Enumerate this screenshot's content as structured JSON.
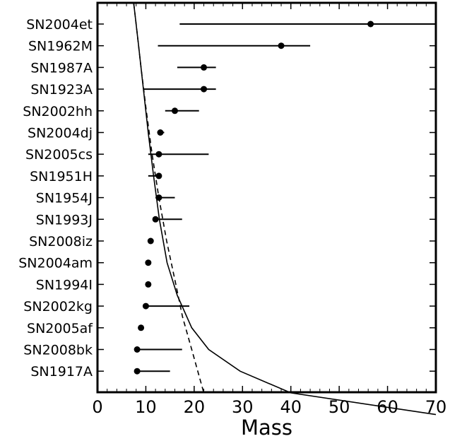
{
  "chart_data": {
    "type": "scatter",
    "title": "",
    "xlabel": "Mass",
    "ylabel": "",
    "xlim": [
      0,
      70
    ],
    "xticks": [
      "0",
      "10",
      "20",
      "30",
      "40",
      "50",
      "60",
      "70"
    ],
    "grid": false,
    "legend": "none",
    "categories": [
      "SN2004et",
      "SN1962M",
      "SN1987A",
      "SN1923A",
      "SN2002hh",
      "SN2004dj",
      "SN2005cs",
      "SN1951H",
      "SN1954J",
      "SN1993J",
      "SN2008iz",
      "SN2004am",
      "SN1994I",
      "SN2002kg",
      "SN2005af",
      "SN2008bk",
      "SN1917A"
    ],
    "points": [
      {
        "label": "SN2004et",
        "mass": 56.5,
        "lo": 17.0,
        "hi": 70.0
      },
      {
        "label": "SN1962M",
        "mass": 38.0,
        "lo": 12.5,
        "hi": 44.0
      },
      {
        "label": "SN1987A",
        "mass": 22.0,
        "lo": 16.5,
        "hi": 24.5
      },
      {
        "label": "SN1923A",
        "mass": 22.0,
        "lo": 9.5,
        "hi": 24.5
      },
      {
        "label": "SN2002hh",
        "mass": 16.0,
        "lo": 14.0,
        "hi": 21.0
      },
      {
        "label": "SN2004dj",
        "mass": 13.0,
        "lo": 12.5,
        "hi": 13.8
      },
      {
        "label": "SN2005cs",
        "mass": 12.7,
        "lo": 10.5,
        "hi": 23.0
      },
      {
        "label": "SN1951H",
        "mass": 12.7,
        "lo": 10.5,
        "hi": 13.0
      },
      {
        "label": "SN1954J",
        "mass": 12.7,
        "lo": 12.0,
        "hi": 16.0
      },
      {
        "label": "SN1993J",
        "mass": 12.0,
        "lo": 11.5,
        "hi": 17.5
      },
      {
        "label": "SN2008iz",
        "mass": 11.0,
        "lo": 11.0,
        "hi": 11.0
      },
      {
        "label": "SN2004am",
        "mass": 10.5,
        "lo": 10.5,
        "hi": 10.5
      },
      {
        "label": "SN1994I",
        "mass": 10.5,
        "lo": 10.5,
        "hi": 10.5
      },
      {
        "label": "SN2002kg",
        "mass": 10.0,
        "lo": 10.0,
        "hi": 19.0
      },
      {
        "label": "SN2005af",
        "mass": 9.0,
        "lo": 9.0,
        "hi": 9.0
      },
      {
        "label": "SN2008bk",
        "mass": 8.2,
        "lo": 8.2,
        "hi": 17.5
      },
      {
        "label": "SN1917A",
        "mass": 8.2,
        "lo": 8.2,
        "hi": 15.0
      }
    ],
    "curves": [
      {
        "style": "solid",
        "color": "#000000",
        "points": [
          [
            7.5,
            -0.95
          ],
          [
            8.5,
            1
          ],
          [
            9.5,
            3
          ],
          [
            10.5,
            5
          ],
          [
            11.6,
            7
          ],
          [
            12.8,
            9
          ],
          [
            14.4,
            11
          ],
          [
            16.5,
            12.5
          ],
          [
            19.5,
            14
          ],
          [
            23,
            15
          ],
          [
            29.5,
            16
          ],
          [
            40,
            17
          ],
          [
            70,
            18
          ]
        ]
      },
      {
        "style": "dashed",
        "color": "#000000",
        "points": [
          [
            7.5,
            -0.95
          ],
          [
            8.0,
            0
          ],
          [
            9.0,
            2
          ],
          [
            10.1,
            4
          ],
          [
            11.3,
            6
          ],
          [
            12.7,
            8
          ],
          [
            14.3,
            10
          ],
          [
            16.2,
            12
          ],
          [
            17.6,
            13.5
          ],
          [
            19.5,
            15
          ],
          [
            22.0,
            17.0
          ]
        ]
      }
    ]
  }
}
